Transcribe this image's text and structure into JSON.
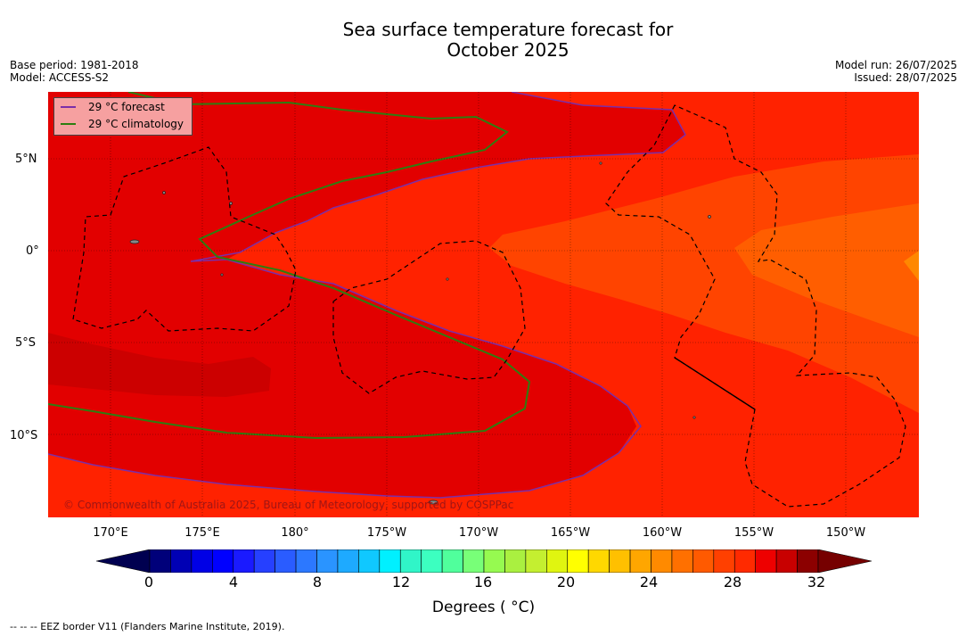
{
  "title_line1": "Sea surface temperature forecast for",
  "title_line2": "October 2025",
  "base_period": "Base period: 1981-2018",
  "model": "Model: ACCESS-S2",
  "model_run": "Model run: 26/07/2025",
  "issued": "Issued: 28/07/2025",
  "legend": [
    {
      "label": "29 °C  forecast",
      "color": "#7b2ea8"
    },
    {
      "label": "29 °C  climatology",
      "color": "#2e7d10"
    }
  ],
  "copyright": "© Commonwealth of Australia 2025, Bureau of Meteorology, supported by COSPPac",
  "lon_labels": [
    "170°E",
    "175°E",
    "180°",
    "175°W",
    "170°W",
    "165°W",
    "160°W",
    "155°W",
    "150°W"
  ],
  "lat_labels": [
    "5°N",
    "0°",
    "5°S",
    "10°S"
  ],
  "colorbar": {
    "ticks": [
      "0",
      "4",
      "8",
      "12",
      "16",
      "20",
      "24",
      "28",
      "32"
    ],
    "label": "Degrees ( °C)",
    "colors": [
      "#00007a",
      "#0000b4",
      "#0000e6",
      "#0000ff",
      "#1a1aff",
      "#2640ff",
      "#2a5cff",
      "#2c78ff",
      "#2a94ff",
      "#1eaaff",
      "#10c8ff",
      "#00f0ff",
      "#30f5c8",
      "#3cffc0",
      "#50ff9c",
      "#78ff78",
      "#96fa50",
      "#aaf040",
      "#c4ef30",
      "#e0f510",
      "#ffff00",
      "#ffd800",
      "#ffc000",
      "#ffa600",
      "#ff8a00",
      "#ff7000",
      "#ff5a00",
      "#ff4000",
      "#ff2a00",
      "#ee0000",
      "#c80000",
      "#8c0000"
    ]
  },
  "footer": "--  --  -- EEZ border V11 (Flanders Marine Institute, 2019)."
}
